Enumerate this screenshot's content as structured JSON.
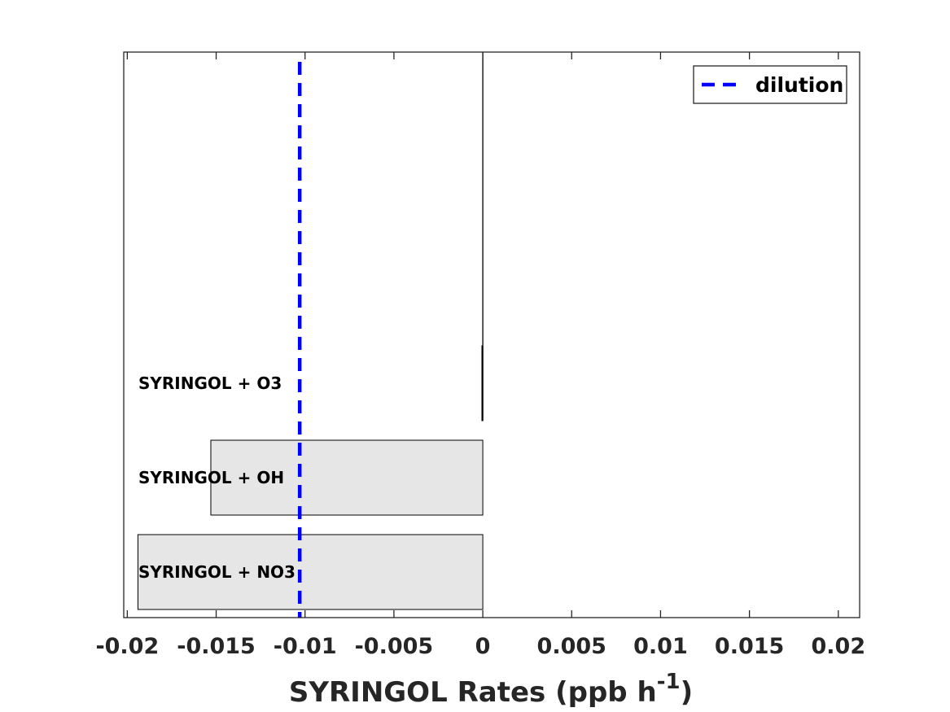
{
  "chart_data": {
    "type": "bar",
    "orientation": "horizontal",
    "categories": [
      "SYRINGOL + NO3",
      "SYRINGOL + OH",
      "SYRINGOL + O3"
    ],
    "values": [
      -0.0194,
      -0.0153,
      -5e-05
    ],
    "xlim": [
      -0.0202,
      0.0212
    ],
    "xticks": [
      -0.02,
      -0.015,
      -0.01,
      -0.005,
      0,
      0.005,
      0.01,
      0.015,
      0.02
    ],
    "xtick_labels": [
      "-0.02",
      "-0.015",
      "-0.01",
      "-0.005",
      "0",
      "0.005",
      "0.01",
      "0.015",
      "0.02"
    ],
    "xlabel": {
      "main": "SYRINGOL Rates (ppb h",
      "superscript": "-1",
      "close": ")"
    },
    "reference_line": {
      "name": "dilution",
      "x": -0.0103,
      "color": "#0000ff",
      "style": "dashed"
    },
    "legend": {
      "entries": [
        "dilution"
      ],
      "position": "top-right"
    },
    "bar_color": "#e6e6e6",
    "grid": false
  }
}
